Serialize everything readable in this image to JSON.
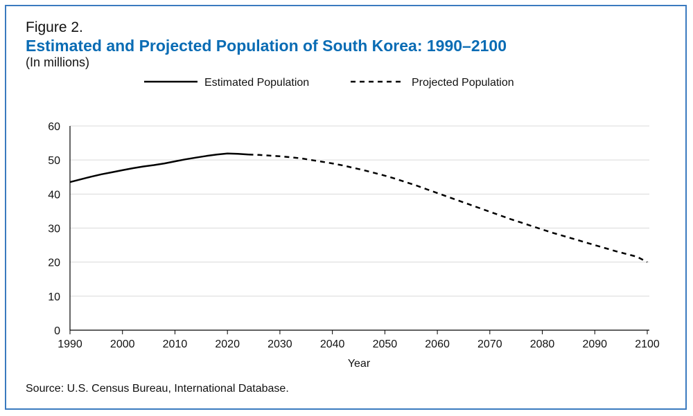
{
  "figure_label": "Figure 2.",
  "chart_data": {
    "type": "line",
    "title": "Estimated and Projected Population of South Korea: 1990–2100",
    "subtitle": "(In millions)",
    "xlabel": "Year",
    "ylabel": "",
    "xlim": [
      1990,
      2100
    ],
    "ylim": [
      0,
      60
    ],
    "x_ticks": [
      1990,
      2000,
      2010,
      2020,
      2030,
      2040,
      2050,
      2060,
      2070,
      2080,
      2090,
      2100
    ],
    "y_ticks": [
      0,
      10,
      20,
      30,
      40,
      50,
      60
    ],
    "grid": "horizontal",
    "legend_position": "top-center",
    "series": [
      {
        "name": "Estimated Population",
        "style": "solid",
        "color": "#000000",
        "x": [
          1990,
          1992,
          1994,
          1996,
          1998,
          2000,
          2002,
          2004,
          2006,
          2008,
          2010,
          2012,
          2014,
          2016,
          2018,
          2020,
          2022,
          2024
        ],
        "values": [
          43.5,
          44.3,
          45.1,
          45.8,
          46.4,
          47.0,
          47.6,
          48.1,
          48.5,
          49.0,
          49.6,
          50.2,
          50.7,
          51.2,
          51.6,
          51.9,
          51.8,
          51.6
        ]
      },
      {
        "name": "Projected Population",
        "style": "dashed",
        "color": "#000000",
        "x": [
          2024,
          2026,
          2028,
          2030,
          2032,
          2034,
          2036,
          2038,
          2040,
          2042,
          2044,
          2046,
          2048,
          2050,
          2052,
          2054,
          2056,
          2058,
          2060,
          2062,
          2064,
          2066,
          2068,
          2070,
          2072,
          2074,
          2076,
          2078,
          2080,
          2082,
          2084,
          2086,
          2088,
          2090,
          2092,
          2094,
          2096,
          2098,
          2100
        ],
        "values": [
          51.6,
          51.5,
          51.3,
          51.1,
          50.8,
          50.5,
          50.0,
          49.5,
          49.0,
          48.4,
          47.7,
          47.0,
          46.2,
          45.4,
          44.5,
          43.5,
          42.5,
          41.4,
          40.3,
          39.2,
          38.1,
          37.0,
          35.9,
          34.8,
          33.7,
          32.6,
          31.6,
          30.6,
          29.6,
          28.6,
          27.7,
          26.8,
          25.9,
          25.0,
          24.1,
          23.2,
          22.4,
          21.6,
          20.0
        ]
      }
    ]
  },
  "source": "Source: U.S. Census Bureau, International Database."
}
